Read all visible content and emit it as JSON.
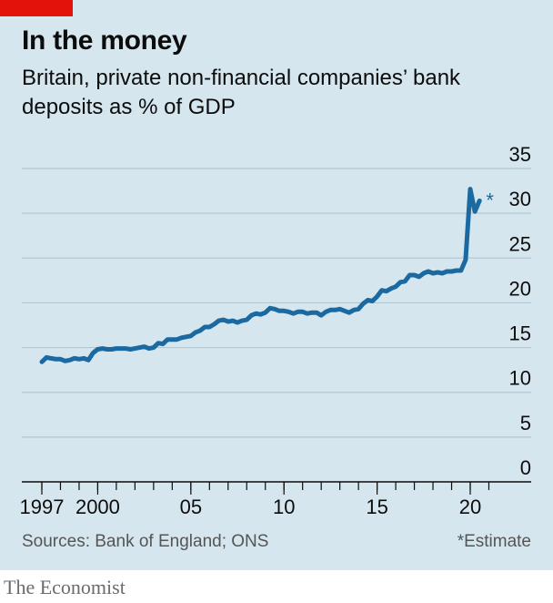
{
  "header": {
    "title": "In the money",
    "subtitle": "Britain, private non-financial companies’ bank deposits as % of GDP"
  },
  "footer": {
    "sources": "Sources: Bank of England; ONS",
    "note": "*Estimate"
  },
  "brand": "The Economist",
  "colors": {
    "line": "#1a69a0",
    "accent": "#e3120b",
    "background": "#d6e6ee",
    "grid": "#b4c7d2"
  },
  "chart_data": {
    "type": "line",
    "title": "In the money",
    "subtitle": "Britain, private non-financial companies’ bank deposits as % of GDP",
    "ylim": [
      0,
      35
    ],
    "y_ticks": [
      0,
      5,
      10,
      15,
      20,
      25,
      30,
      35
    ],
    "y_axis_side": "right",
    "xlim": [
      1997,
      2021.6
    ],
    "x_ticks": [
      {
        "value": 1997,
        "label": "1997"
      },
      {
        "value": 2000,
        "label": "2000"
      },
      {
        "value": 2005,
        "label": "05"
      },
      {
        "value": 2010,
        "label": "10"
      },
      {
        "value": 2015,
        "label": "15"
      },
      {
        "value": 2020,
        "label": "20"
      }
    ],
    "grid": true,
    "annotation": {
      "text": "*",
      "x": 2020.85,
      "y": 31.7
    },
    "series": [
      {
        "values": [
          [
            1997.0,
            13.4
          ],
          [
            1997.25,
            13.9
          ],
          [
            1997.5,
            13.8
          ],
          [
            1997.75,
            13.7
          ],
          [
            1998.0,
            13.7
          ],
          [
            1998.25,
            13.5
          ],
          [
            1998.5,
            13.6
          ],
          [
            1998.75,
            13.8
          ],
          [
            1999.0,
            13.7
          ],
          [
            1999.25,
            13.8
          ],
          [
            1999.5,
            13.6
          ],
          [
            1999.75,
            14.4
          ],
          [
            2000.0,
            14.8
          ],
          [
            2000.25,
            14.9
          ],
          [
            2000.5,
            14.8
          ],
          [
            2000.75,
            14.8
          ],
          [
            2001.0,
            14.9
          ],
          [
            2001.25,
            14.9
          ],
          [
            2001.5,
            14.9
          ],
          [
            2001.75,
            14.8
          ],
          [
            2002.0,
            14.9
          ],
          [
            2002.25,
            15.0
          ],
          [
            2002.5,
            15.1
          ],
          [
            2002.75,
            14.9
          ],
          [
            2003.0,
            15.0
          ],
          [
            2003.25,
            15.5
          ],
          [
            2003.5,
            15.4
          ],
          [
            2003.75,
            15.9
          ],
          [
            2004.0,
            15.9
          ],
          [
            2004.25,
            15.9
          ],
          [
            2004.5,
            16.1
          ],
          [
            2004.75,
            16.2
          ],
          [
            2005.0,
            16.3
          ],
          [
            2005.25,
            16.7
          ],
          [
            2005.5,
            16.9
          ],
          [
            2005.75,
            17.3
          ],
          [
            2006.0,
            17.3
          ],
          [
            2006.25,
            17.6
          ],
          [
            2006.5,
            18.0
          ],
          [
            2006.75,
            18.1
          ],
          [
            2007.0,
            17.9
          ],
          [
            2007.25,
            18.0
          ],
          [
            2007.5,
            17.8
          ],
          [
            2007.75,
            18.0
          ],
          [
            2008.0,
            18.1
          ],
          [
            2008.25,
            18.6
          ],
          [
            2008.5,
            18.8
          ],
          [
            2008.75,
            18.7
          ],
          [
            2009.0,
            18.9
          ],
          [
            2009.25,
            19.4
          ],
          [
            2009.5,
            19.3
          ],
          [
            2009.75,
            19.1
          ],
          [
            2010.0,
            19.1
          ],
          [
            2010.25,
            19.0
          ],
          [
            2010.5,
            18.8
          ],
          [
            2010.75,
            19.0
          ],
          [
            2011.0,
            19.0
          ],
          [
            2011.25,
            18.8
          ],
          [
            2011.5,
            18.9
          ],
          [
            2011.75,
            18.9
          ],
          [
            2012.0,
            18.6
          ],
          [
            2012.25,
            19.0
          ],
          [
            2012.5,
            19.2
          ],
          [
            2012.75,
            19.2
          ],
          [
            2013.0,
            19.3
          ],
          [
            2013.25,
            19.1
          ],
          [
            2013.5,
            18.9
          ],
          [
            2013.75,
            19.2
          ],
          [
            2014.0,
            19.3
          ],
          [
            2014.25,
            19.9
          ],
          [
            2014.5,
            20.3
          ],
          [
            2014.75,
            20.2
          ],
          [
            2015.0,
            20.7
          ],
          [
            2015.25,
            21.4
          ],
          [
            2015.5,
            21.3
          ],
          [
            2015.75,
            21.6
          ],
          [
            2016.0,
            21.8
          ],
          [
            2016.25,
            22.3
          ],
          [
            2016.5,
            22.4
          ],
          [
            2016.75,
            23.1
          ],
          [
            2017.0,
            23.1
          ],
          [
            2017.25,
            22.9
          ],
          [
            2017.5,
            23.3
          ],
          [
            2017.75,
            23.5
          ],
          [
            2018.0,
            23.3
          ],
          [
            2018.25,
            23.4
          ],
          [
            2018.5,
            23.3
          ],
          [
            2018.75,
            23.5
          ],
          [
            2019.0,
            23.5
          ],
          [
            2019.25,
            23.6
          ],
          [
            2019.5,
            23.6
          ],
          [
            2019.75,
            24.8
          ],
          [
            2020.0,
            32.7
          ],
          [
            2020.25,
            30.2
          ],
          [
            2020.5,
            31.4
          ]
        ]
      }
    ]
  }
}
